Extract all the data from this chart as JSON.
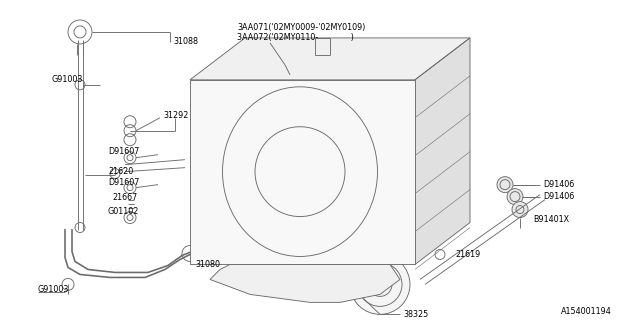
{
  "bg_color": "#ffffff",
  "line_color": "#6b6b6b",
  "text_color": "#000000",
  "fig_width": 6.4,
  "fig_height": 3.2,
  "dpi": 100,
  "watermark": "A154001194",
  "title_line1": "3AA071('02MY0009-'02MY0109)",
  "title_line2": "3AA072('02MY0110-             )",
  "font_size": 5.8
}
